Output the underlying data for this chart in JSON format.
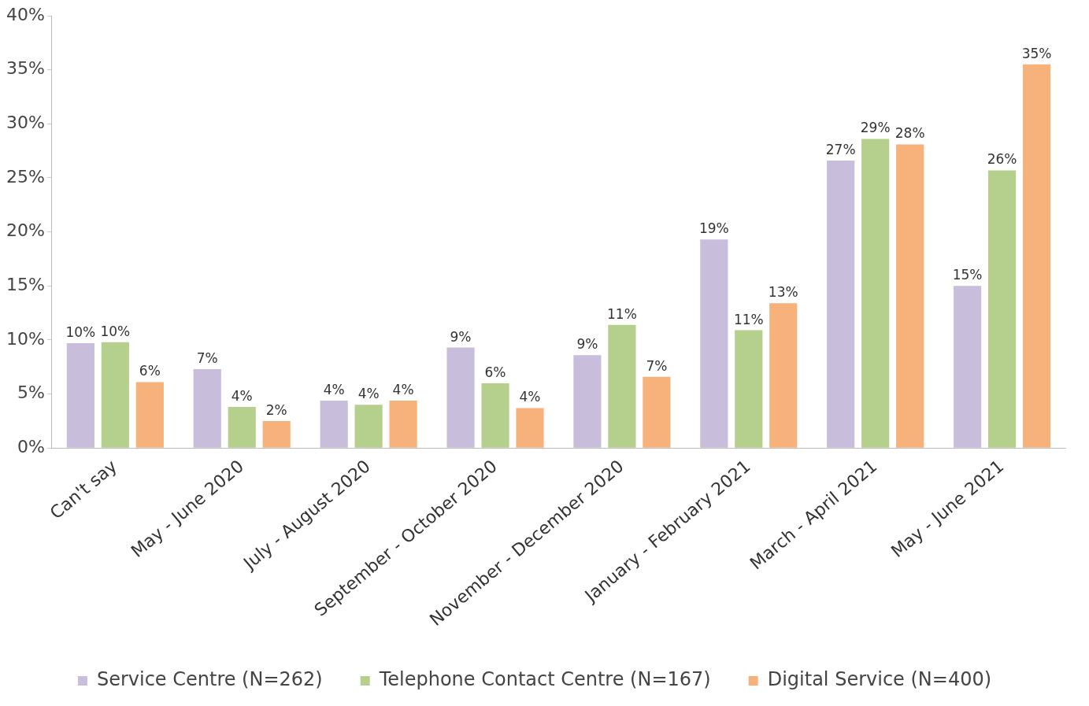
{
  "chart_data": {
    "type": "bar",
    "categories": [
      "Can't say",
      "May - June 2020",
      "July - August 2020",
      "September - October 2020",
      "November - December 2020",
      "January - February 2021",
      "March - April 2021",
      "May - June 2021"
    ],
    "series": [
      {
        "name": "Service Centre (N=262)",
        "color": "#c9bddc",
        "values": [
          9.7,
          7.3,
          4.4,
          9.3,
          8.6,
          19.3,
          26.6,
          15.0
        ],
        "value_labels": [
          "10%",
          "7%",
          "4%",
          "9%",
          "9%",
          "19%",
          "27%",
          "15%"
        ]
      },
      {
        "name": "Telephone Contact Centre (N=167)",
        "color": "#b5cf8c",
        "values": [
          9.8,
          3.8,
          4.0,
          6.0,
          11.4,
          10.9,
          28.6,
          25.7
        ],
        "value_labels": [
          "10%",
          "4%",
          "4%",
          "6%",
          "11%",
          "11%",
          "29%",
          "26%"
        ]
      },
      {
        "name": "Digital Service (N=400)",
        "color": "#f7b27c",
        "values": [
          6.1,
          2.5,
          4.4,
          3.7,
          6.6,
          13.4,
          28.1,
          35.5
        ],
        "value_labels": [
          "6%",
          "2%",
          "4%",
          "4%",
          "7%",
          "13%",
          "28%",
          "35%"
        ]
      }
    ],
    "ylim": [
      0,
      40
    ],
    "yticks": [
      {
        "value": 0,
        "label": "0%"
      },
      {
        "value": 5,
        "label": "5%"
      },
      {
        "value": 10,
        "label": "10%"
      },
      {
        "value": 15,
        "label": "15%"
      },
      {
        "value": 20,
        "label": "20%"
      },
      {
        "value": 25,
        "label": "25%"
      },
      {
        "value": 30,
        "label": "30%"
      },
      {
        "value": 35,
        "label": "35%"
      },
      {
        "value": 40,
        "label": "40%"
      }
    ],
    "grid": false,
    "legend": "bottom"
  }
}
